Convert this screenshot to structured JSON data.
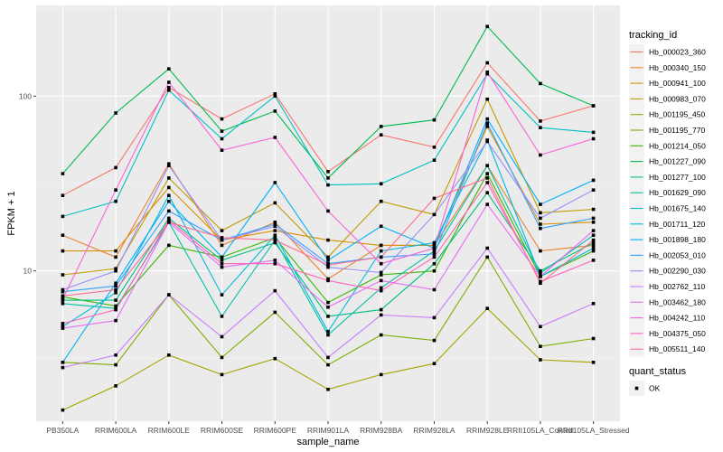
{
  "chart_data": {
    "type": "line",
    "xlabel": "sample_name",
    "ylabel": "FPKM + 1",
    "y_scale": "log10",
    "ylim": [
      1.38,
      330
    ],
    "y_ticks": [
      {
        "value": 10,
        "label": "10"
      },
      {
        "value": 100,
        "label": "100"
      }
    ],
    "grid": true,
    "legend_position": "right",
    "categories": [
      "PB350LA",
      "RRIM600LA",
      "RRIM600LE",
      "RRIM600SE",
      "RRIM600PE",
      "RRIM901LA",
      "RRIM928BA",
      "RRIM928LA",
      "RRIM928LE",
      "RRII105LA_Control",
      "RRII105LA_Stressed"
    ],
    "legend_color": {
      "title": "tracking_id",
      "items": [
        "Hb_000023_360",
        "Hb_000340_150",
        "Hb_000941_100",
        "Hb_000983_070",
        "Hb_001195_450",
        "Hb_001195_770",
        "Hb_001214_050",
        "Hb_001227_090",
        "Hb_001277_100",
        "Hb_001629_090",
        "Hb_001675_140",
        "Hb_001711_120",
        "Hb_001898_180",
        "Hb_002053_010",
        "Hb_002290_030",
        "Hb_002762_110",
        "Hb_003462_180",
        "Hb_004242_110",
        "Hb_004375_050",
        "Hb_005511_140"
      ]
    },
    "legend_shape": {
      "title": "quant_status",
      "items": [
        "OK"
      ]
    },
    "series": [
      {
        "name": "Hb_000023_360",
        "color": "#F8766D",
        "values": [
          27,
          39,
          112,
          74,
          103,
          37,
          60,
          51,
          155,
          72,
          88
        ]
      },
      {
        "name": "Hb_000340_150",
        "color": "#EA8331",
        "values": [
          16,
          12,
          41,
          14,
          19,
          9,
          14,
          14,
          40,
          13,
          14
        ]
      },
      {
        "name": "Hb_000941_100",
        "color": "#D89000",
        "values": [
          13,
          13,
          30,
          15,
          17,
          15,
          14,
          14,
          67,
          18.5,
          19
        ]
      },
      {
        "name": "Hb_000983_070",
        "color": "#C09B00",
        "values": [
          9.5,
          10.3,
          34,
          17,
          24.5,
          12,
          25,
          21,
          96,
          21.5,
          22.5
        ]
      },
      {
        "name": "Hb_001195_450",
        "color": "#A3A500",
        "values": [
          1.6,
          2.2,
          3.3,
          2.55,
          3.15,
          2.1,
          2.55,
          2.95,
          6.1,
          3.1,
          3.0
        ]
      },
      {
        "name": "Hb_001195_770",
        "color": "#7CAE00",
        "values": [
          3.0,
          2.9,
          7.3,
          3.2,
          5.8,
          2.9,
          4.3,
          4.0,
          12,
          3.7,
          4.1
        ]
      },
      {
        "name": "Hb_001214_050",
        "color": "#39B600",
        "values": [
          7.1,
          6.3,
          14,
          12,
          15.5,
          6.6,
          9.5,
          10,
          36,
          9.3,
          13
        ]
      },
      {
        "name": "Hb_001227_090",
        "color": "#00BB4E",
        "values": [
          36,
          80,
          143,
          63,
          82,
          34,
          67,
          73,
          250,
          118,
          88
        ]
      },
      {
        "name": "Hb_001277_100",
        "color": "#00BF7D",
        "values": [
          6.8,
          6.8,
          20,
          11.5,
          14.5,
          5.5,
          6,
          11,
          28,
          10,
          14.5
        ]
      },
      {
        "name": "Hb_001629_090",
        "color": "#00C1A3",
        "values": [
          6.5,
          6.1,
          19,
          5.5,
          15,
          4.3,
          8,
          13,
          40,
          9.7,
          16
        ]
      },
      {
        "name": "Hb_001675_140",
        "color": "#00BFC4",
        "values": [
          20.5,
          25,
          108,
          57,
          100,
          31,
          31.5,
          43,
          134,
          66,
          62
        ]
      },
      {
        "name": "Hb_001711_120",
        "color": "#00BAE0",
        "values": [
          4.8,
          7.5,
          27,
          7.3,
          16,
          4.5,
          13,
          14.5,
          56,
          9.3,
          13.5
        ]
      },
      {
        "name": "Hb_001898_180",
        "color": "#00B0F6",
        "values": [
          3.0,
          8.5,
          25,
          12,
          32,
          11.5,
          18,
          13.5,
          74,
          24,
          33
        ]
      },
      {
        "name": "Hb_002053_010",
        "color": "#35A2FF",
        "values": [
          7.6,
          8.2,
          22,
          15,
          18.5,
          11,
          12,
          12.5,
          70,
          17.5,
          20
        ]
      },
      {
        "name": "Hb_002290_030",
        "color": "#9590FF",
        "values": [
          7.8,
          10,
          40,
          15,
          18,
          10.5,
          9.8,
          21,
          55,
          20,
          29
        ]
      },
      {
        "name": "Hb_002762_110",
        "color": "#C77CFF",
        "values": [
          2.8,
          3.3,
          7.3,
          4.2,
          7.7,
          3.2,
          5.6,
          5.4,
          13.5,
          4.8,
          6.5
        ]
      },
      {
        "name": "Hb_003462_180",
        "color": "#E76BF3",
        "values": [
          4.7,
          5.2,
          19,
          10.5,
          11.5,
          6.2,
          8.8,
          7.8,
          24,
          9.3,
          17
        ]
      },
      {
        "name": "Hb_004242_110",
        "color": "#FA62DB",
        "values": [
          6.9,
          29,
          120,
          49,
          58,
          22,
          11,
          13.5,
          137,
          46,
          57
        ]
      },
      {
        "name": "Hb_004375_050",
        "color": "#FF62BC",
        "values": [
          5.0,
          6.0,
          19.5,
          11,
          11,
          8.8,
          7.7,
          12,
          32,
          8.7,
          11.5
        ]
      },
      {
        "name": "Hb_005511_140",
        "color": "#FF6C91",
        "values": [
          7.2,
          7.8,
          19,
          15.5,
          15,
          10.8,
          12,
          26,
          34,
          8.5,
          15
        ]
      }
    ]
  }
}
